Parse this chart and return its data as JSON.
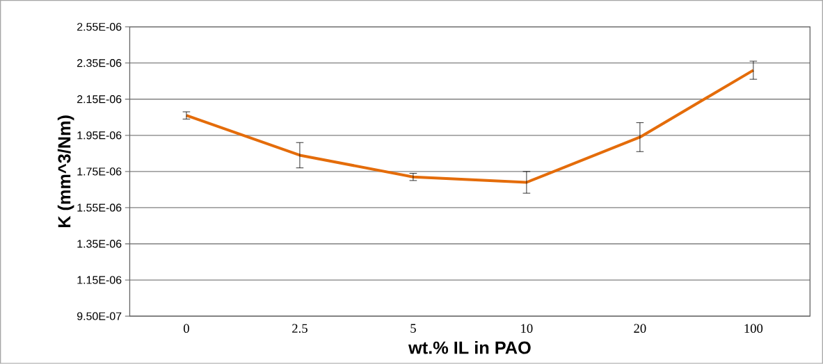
{
  "chart_data": {
    "type": "line",
    "xlabel": "wt.% IL in PAO",
    "ylabel": "K (mm^3/Nm)",
    "categories": [
      "0",
      "2.5",
      "5",
      "10",
      "20",
      "100"
    ],
    "series": [
      {
        "color": "#e46c0a",
        "values": [
          2.06e-06,
          1.84e-06,
          1.72e-06,
          1.69e-06,
          1.94e-06,
          2.31e-06
        ],
        "errors": [
          2e-08,
          7e-08,
          2e-08,
          6e-08,
          8e-08,
          5e-08
        ]
      }
    ],
    "ylim": [
      9.5e-07,
      2.55e-06
    ],
    "yticks": [
      {
        "value": 9.5e-07,
        "label": "9.50E-07"
      },
      {
        "value": 1.15e-06,
        "label": "1.15E-06"
      },
      {
        "value": 1.35e-06,
        "label": "1.35E-06"
      },
      {
        "value": 1.55e-06,
        "label": "1.55E-06"
      },
      {
        "value": 1.75e-06,
        "label": "1.75E-06"
      },
      {
        "value": 1.95e-06,
        "label": "1.95E-06"
      },
      {
        "value": 2.15e-06,
        "label": "2.15E-06"
      },
      {
        "value": 2.35e-06,
        "label": "2.35E-06"
      },
      {
        "value": 2.55e-06,
        "label": "2.55E-06"
      }
    ],
    "grid": "y",
    "marker": "none",
    "line_style": "solid"
  }
}
